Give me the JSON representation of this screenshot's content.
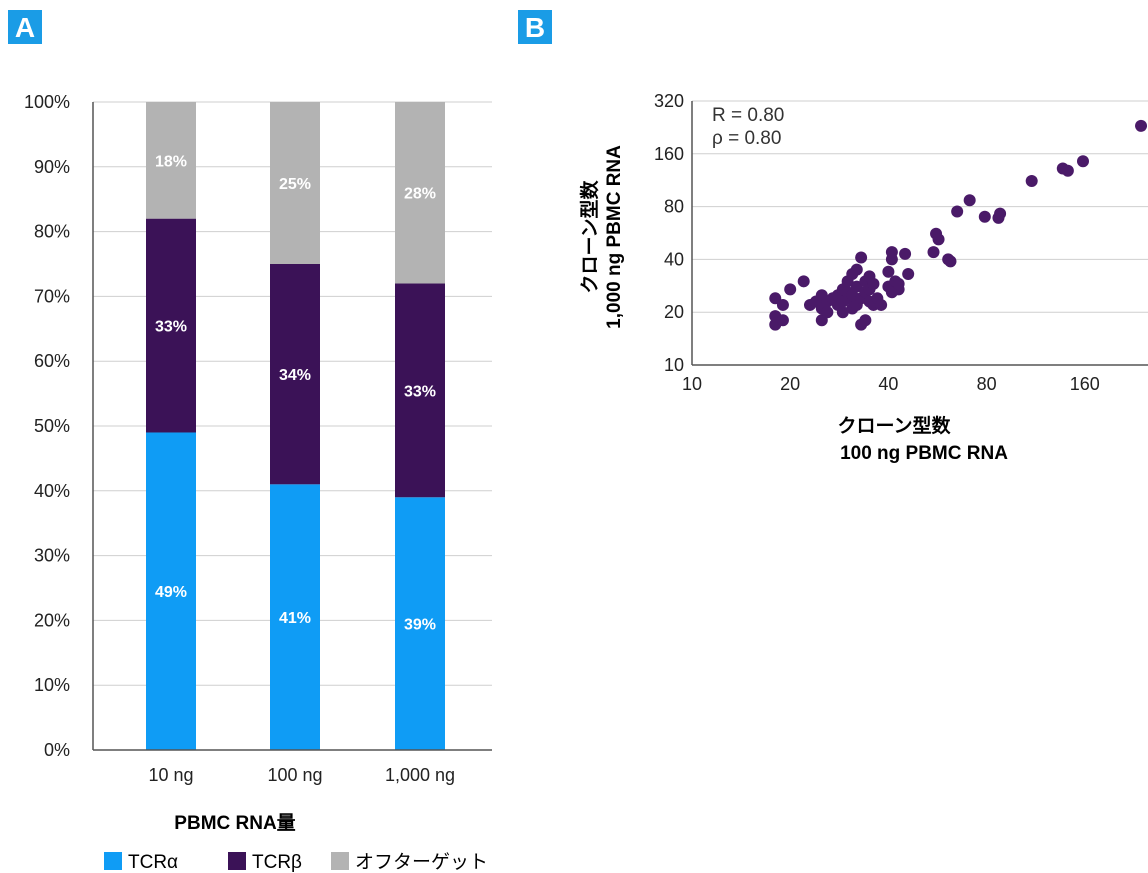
{
  "panels": {
    "a": {
      "badge": "A"
    },
    "b": {
      "badge": "B"
    }
  },
  "colors": {
    "badge": "#1a9ce6",
    "tcr_alpha": "#0f9cf5",
    "tcr_beta": "#3b1257",
    "off_target": "#b3b3b3",
    "scatter_point": "#4a1a68",
    "grid": "#cfcfcf"
  },
  "chart_data": [
    {
      "type": "bar",
      "stacked": true,
      "title": "",
      "xlabel": "PBMC RNA量",
      "ylabel": "",
      "categories": [
        "10 ng",
        "100 ng",
        "1,000 ng"
      ],
      "ylim": [
        0,
        100
      ],
      "yticks": [
        "0%",
        "10%",
        "20%",
        "30%",
        "40%",
        "50%",
        "60%",
        "70%",
        "80%",
        "90%",
        "100%"
      ],
      "series": [
        {
          "name": "TCRα",
          "values": [
            49,
            41,
            39
          ],
          "labels": [
            "49%",
            "41%",
            "39%"
          ]
        },
        {
          "name": "TCRβ",
          "values": [
            33,
            34,
            33
          ],
          "labels": [
            "33%",
            "34%",
            "33%"
          ]
        },
        {
          "name": "オフターゲット",
          "values": [
            18,
            25,
            28
          ],
          "labels": [
            "18%",
            "25%",
            "28%"
          ]
        }
      ],
      "legend_position": "bottom",
      "grid": true
    },
    {
      "type": "scatter",
      "scale": "log2",
      "xlabel_lines": [
        "クローン型数",
        "100 ng PBMC RNA"
      ],
      "ylabel_lines": [
        "クローン型数",
        "1,000 ng PBMC RNA"
      ],
      "xticks": [
        10,
        20,
        40,
        80,
        160
      ],
      "yticks": [
        10,
        20,
        40,
        80,
        160,
        320
      ],
      "xlim": [
        10,
        250
      ],
      "ylim": [
        10,
        320
      ],
      "annotations": [
        "R = 0.80",
        "ρ = 0.80"
      ],
      "grid": true,
      "points": [
        [
          18,
          17
        ],
        [
          18,
          19
        ],
        [
          18,
          24
        ],
        [
          19,
          18
        ],
        [
          19,
          22
        ],
        [
          20,
          27
        ],
        [
          22,
          30
        ],
        [
          23,
          22
        ],
        [
          24,
          23
        ],
        [
          25,
          21
        ],
        [
          25,
          18
        ],
        [
          25,
          25
        ],
        [
          26,
          20
        ],
        [
          26,
          23
        ],
        [
          27,
          24
        ],
        [
          28,
          22
        ],
        [
          28,
          25
        ],
        [
          29,
          20
        ],
        [
          29,
          23
        ],
        [
          29,
          27
        ],
        [
          30,
          24
        ],
        [
          30,
          26
        ],
        [
          30,
          30
        ],
        [
          31,
          21
        ],
        [
          31,
          25
        ],
        [
          31,
          33
        ],
        [
          32,
          22
        ],
        [
          32,
          28
        ],
        [
          32,
          35
        ],
        [
          33,
          17
        ],
        [
          33,
          24
        ],
        [
          33,
          41
        ],
        [
          34,
          18
        ],
        [
          34,
          26
        ],
        [
          34,
          30
        ],
        [
          35,
          23
        ],
        [
          35,
          27
        ],
        [
          35,
          32
        ],
        [
          36,
          29
        ],
        [
          36,
          22
        ],
        [
          37,
          24
        ],
        [
          38,
          22
        ],
        [
          40,
          28
        ],
        [
          40,
          34
        ],
        [
          41,
          40
        ],
        [
          41,
          26
        ],
        [
          41,
          44
        ],
        [
          42,
          30
        ],
        [
          43,
          27
        ],
        [
          43,
          29
        ],
        [
          45,
          43
        ],
        [
          46,
          33
        ],
        [
          55,
          44
        ],
        [
          56,
          56
        ],
        [
          57,
          52
        ],
        [
          61,
          40
        ],
        [
          62,
          39
        ],
        [
          65,
          75
        ],
        [
          71,
          87
        ],
        [
          79,
          70
        ],
        [
          87,
          69
        ],
        [
          88,
          73
        ],
        [
          110,
          112
        ],
        [
          137,
          132
        ],
        [
          142,
          128
        ],
        [
          158,
          145
        ],
        [
          238,
          231
        ]
      ]
    }
  ]
}
